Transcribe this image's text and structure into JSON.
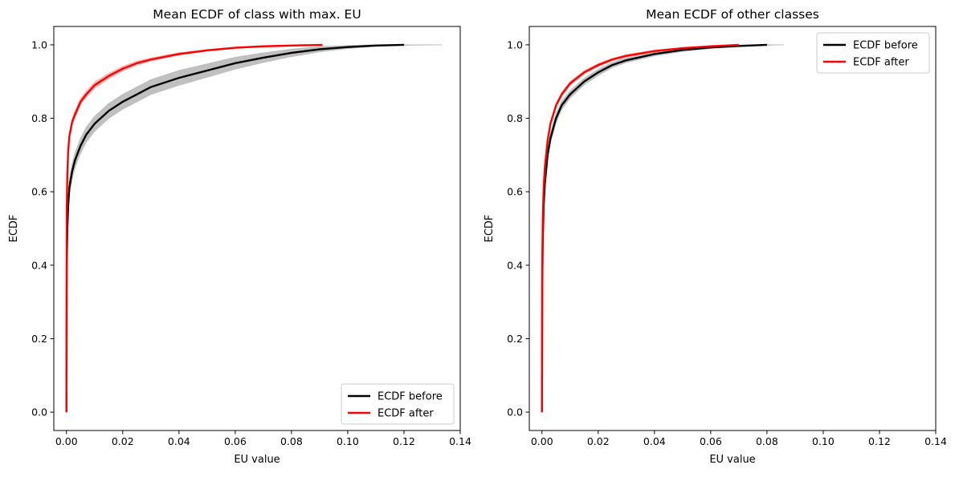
{
  "chart_data": [
    {
      "type": "line",
      "title": "Mean ECDF of class with max. EU",
      "xlabel": "EU value",
      "ylabel": "ECDF",
      "xlim": [
        -0.0045,
        0.14
      ],
      "ylim": [
        -0.05,
        1.05
      ],
      "xticks": [
        "0.00",
        "0.02",
        "0.04",
        "0.06",
        "0.08",
        "0.10",
        "0.12",
        "0.14"
      ],
      "yticks": [
        "0.0",
        "0.2",
        "0.4",
        "0.6",
        "0.8",
        "1.0"
      ],
      "grid": false,
      "legend_position": "lower-right",
      "series": [
        {
          "name": "ECDF before",
          "color": "#000000",
          "band_color": "#bdbdbd",
          "x": [
            0,
            0.0001,
            0.0003,
            0.0006,
            0.001,
            0.002,
            0.003,
            0.005,
            0.007,
            0.01,
            0.015,
            0.02,
            0.025,
            0.03,
            0.04,
            0.05,
            0.06,
            0.07,
            0.08,
            0.09,
            0.1,
            0.11,
            0.12
          ],
          "y": [
            0,
            0.4,
            0.5,
            0.56,
            0.61,
            0.655,
            0.685,
            0.725,
            0.755,
            0.785,
            0.82,
            0.845,
            0.865,
            0.885,
            0.91,
            0.93,
            0.95,
            0.965,
            0.978,
            0.988,
            0.994,
            0.998,
            1.0
          ],
          "band_halfwidth": [
            0,
            0.012,
            0.015,
            0.018,
            0.02,
            0.02,
            0.02,
            0.02,
            0.02,
            0.02,
            0.02,
            0.02,
            0.02,
            0.02,
            0.02,
            0.018,
            0.016,
            0.013,
            0.01,
            0.007,
            0.004,
            0.002,
            0.001
          ],
          "band_extends_to_x": 0.1335
        },
        {
          "name": "ECDF after",
          "color": "#ff0000",
          "band_color": "#f4a6a6",
          "x": [
            0,
            0.0001,
            0.0003,
            0.0006,
            0.001,
            0.002,
            0.003,
            0.005,
            0.007,
            0.01,
            0.015,
            0.02,
            0.025,
            0.03,
            0.04,
            0.05,
            0.06,
            0.07,
            0.08,
            0.091
          ],
          "y": [
            0,
            0.55,
            0.65,
            0.71,
            0.75,
            0.79,
            0.81,
            0.845,
            0.865,
            0.89,
            0.915,
            0.935,
            0.95,
            0.96,
            0.975,
            0.985,
            0.992,
            0.996,
            0.998,
            1.0
          ],
          "band_halfwidth": [
            0,
            0.008,
            0.008,
            0.008,
            0.008,
            0.008,
            0.008,
            0.008,
            0.008,
            0.008,
            0.007,
            0.006,
            0.005,
            0.004,
            0.003,
            0.002,
            0.0015,
            0.001,
            0.001,
            0.0005
          ],
          "band_extends_to_x": 0.091
        }
      ]
    },
    {
      "type": "line",
      "title": "Mean ECDF of other classes",
      "xlabel": "EU value",
      "ylabel": "ECDF",
      "xlim": [
        -0.0045,
        0.14
      ],
      "ylim": [
        -0.05,
        1.05
      ],
      "xticks": [
        "0.00",
        "0.02",
        "0.04",
        "0.06",
        "0.08",
        "0.10",
        "0.12",
        "0.14"
      ],
      "yticks": [
        "0.0",
        "0.2",
        "0.4",
        "0.6",
        "0.8",
        "1.0"
      ],
      "grid": false,
      "legend_position": "upper-right",
      "series": [
        {
          "name": "ECDF before",
          "color": "#000000",
          "band_color": "#bdbdbd",
          "x": [
            0,
            0.0001,
            0.0003,
            0.0006,
            0.001,
            0.002,
            0.003,
            0.005,
            0.007,
            0.01,
            0.015,
            0.02,
            0.025,
            0.03,
            0.04,
            0.05,
            0.06,
            0.07,
            0.08
          ],
          "y": [
            0,
            0.35,
            0.48,
            0.56,
            0.62,
            0.7,
            0.745,
            0.8,
            0.835,
            0.865,
            0.9,
            0.925,
            0.945,
            0.958,
            0.975,
            0.986,
            0.993,
            0.997,
            1.0
          ],
          "band_halfwidth": [
            0,
            0.01,
            0.012,
            0.012,
            0.012,
            0.012,
            0.012,
            0.012,
            0.011,
            0.01,
            0.009,
            0.008,
            0.007,
            0.006,
            0.005,
            0.004,
            0.003,
            0.002,
            0.001
          ],
          "band_extends_to_x": 0.086
        },
        {
          "name": "ECDF after",
          "color": "#ff0000",
          "band_color": "#f4a6a6",
          "x": [
            0,
            0.0001,
            0.0003,
            0.0006,
            0.001,
            0.002,
            0.003,
            0.005,
            0.007,
            0.01,
            0.015,
            0.02,
            0.025,
            0.03,
            0.04,
            0.05,
            0.06,
            0.07
          ],
          "y": [
            0,
            0.4,
            0.53,
            0.61,
            0.665,
            0.74,
            0.785,
            0.835,
            0.865,
            0.895,
            0.925,
            0.945,
            0.96,
            0.97,
            0.983,
            0.991,
            0.996,
            1.0
          ],
          "band_halfwidth": [
            0,
            0.006,
            0.006,
            0.006,
            0.006,
            0.006,
            0.006,
            0.005,
            0.005,
            0.005,
            0.004,
            0.004,
            0.003,
            0.003,
            0.002,
            0.0015,
            0.001,
            0.0005
          ],
          "band_extends_to_x": 0.07
        }
      ]
    }
  ]
}
